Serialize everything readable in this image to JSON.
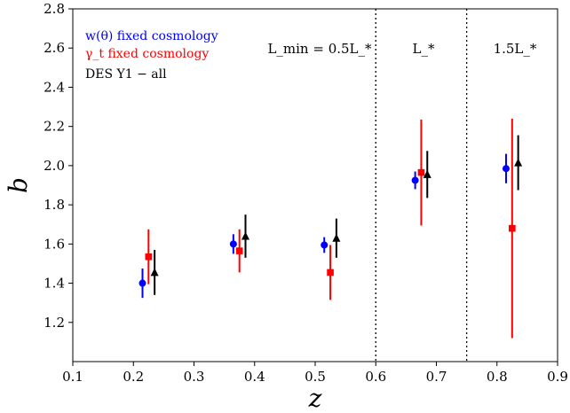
{
  "chart_data": {
    "type": "scatter",
    "title": "",
    "xlabel": "z",
    "ylabel": "b",
    "xlim": [
      0.1,
      0.9
    ],
    "ylim": [
      1.0,
      2.8
    ],
    "xticks": [
      "0.1",
      "0.2",
      "0.3",
      "0.4",
      "0.5",
      "0.6",
      "0.7",
      "0.8",
      "0.9"
    ],
    "yticks": [
      "1.2",
      "1.4",
      "1.6",
      "1.8",
      "2.0",
      "2.2",
      "2.4",
      "2.6",
      "2.8"
    ],
    "grid": false,
    "legend_position": "top-left",
    "dividers_x": [
      0.6,
      0.75
    ],
    "region_labels": [
      "L_min = 0.5L_*",
      "L_*",
      "1.5L_*"
    ],
    "series": [
      {
        "name": "w(θ) fixed cosmology",
        "color": "#0000ff",
        "marker": "circle",
        "x": [
          0.215,
          0.365,
          0.515,
          0.665,
          0.815
        ],
        "y": [
          1.4,
          1.6,
          1.595,
          1.925,
          1.985
        ],
        "err_low": [
          0.075,
          0.05,
          0.04,
          0.045,
          0.075
        ],
        "err_high": [
          0.075,
          0.05,
          0.04,
          0.045,
          0.075
        ]
      },
      {
        "name": "γ_t fixed cosmology",
        "color": "#ff0000",
        "marker": "square",
        "x": [
          0.225,
          0.375,
          0.525,
          0.675,
          0.825
        ],
        "y": [
          1.535,
          1.565,
          1.455,
          1.965,
          1.68
        ],
        "err_low": [
          0.14,
          0.11,
          0.14,
          0.27,
          0.56
        ],
        "err_high": [
          0.14,
          0.11,
          0.14,
          0.27,
          0.56
        ]
      },
      {
        "name": "DES Y1 − all",
        "color": "#000000",
        "marker": "triangle",
        "x": [
          0.235,
          0.385,
          0.535,
          0.685,
          0.835
        ],
        "y": [
          1.455,
          1.64,
          1.63,
          1.955,
          2.015
        ],
        "err_low": [
          0.115,
          0.11,
          0.1,
          0.12,
          0.14
        ],
        "err_high": [
          0.115,
          0.11,
          0.1,
          0.12,
          0.14
        ]
      }
    ]
  }
}
